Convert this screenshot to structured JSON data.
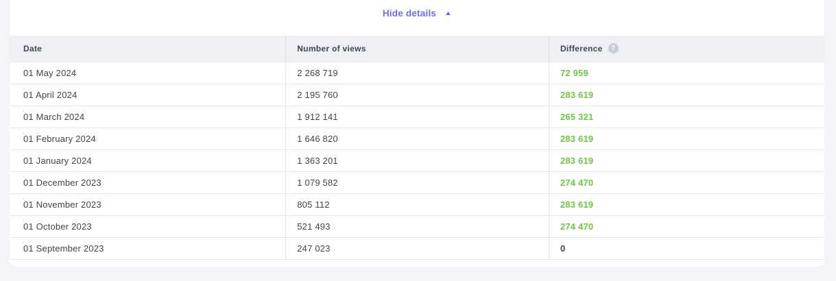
{
  "page": {
    "background_color": "#f3f4f8",
    "card_color": "#ffffff"
  },
  "details_toggle": {
    "label": "Hide details",
    "icon": "caret-up",
    "accent_color": "#6b6af0"
  },
  "table": {
    "columns": [
      {
        "label": "Date"
      },
      {
        "label": "Number of views"
      },
      {
        "label": "Difference",
        "has_help_icon": true
      }
    ],
    "rows": [
      {
        "date": "01 May 2024",
        "views": "2 268 719",
        "difference": "72 959",
        "positive": true
      },
      {
        "date": "01 April 2024",
        "views": "2 195 760",
        "difference": "283 619",
        "positive": true
      },
      {
        "date": "01 March 2024",
        "views": "1 912 141",
        "difference": "265 321",
        "positive": true
      },
      {
        "date": "01 February 2024",
        "views": "1 646 820",
        "difference": "283 619",
        "positive": true
      },
      {
        "date": "01 January 2024",
        "views": "1 363 201",
        "difference": "283 619",
        "positive": true
      },
      {
        "date": "01 December 2023",
        "views": "1 079 582",
        "difference": "274 470",
        "positive": true
      },
      {
        "date": "01 November 2023",
        "views": "805 112",
        "difference": "283 619",
        "positive": true
      },
      {
        "date": "01 October 2023",
        "views": "521 493",
        "difference": "274 470",
        "positive": true
      },
      {
        "date": "01 September 2023",
        "views": "247 023",
        "difference": "0",
        "positive": false
      }
    ],
    "colors": {
      "positive_difference": "#6dc744",
      "header_background": "#eef0f5",
      "row_border": "#e4e6eb",
      "text": "#3e434c"
    },
    "help_icon_glyph": "?",
    "caret_glyph": "▲"
  }
}
